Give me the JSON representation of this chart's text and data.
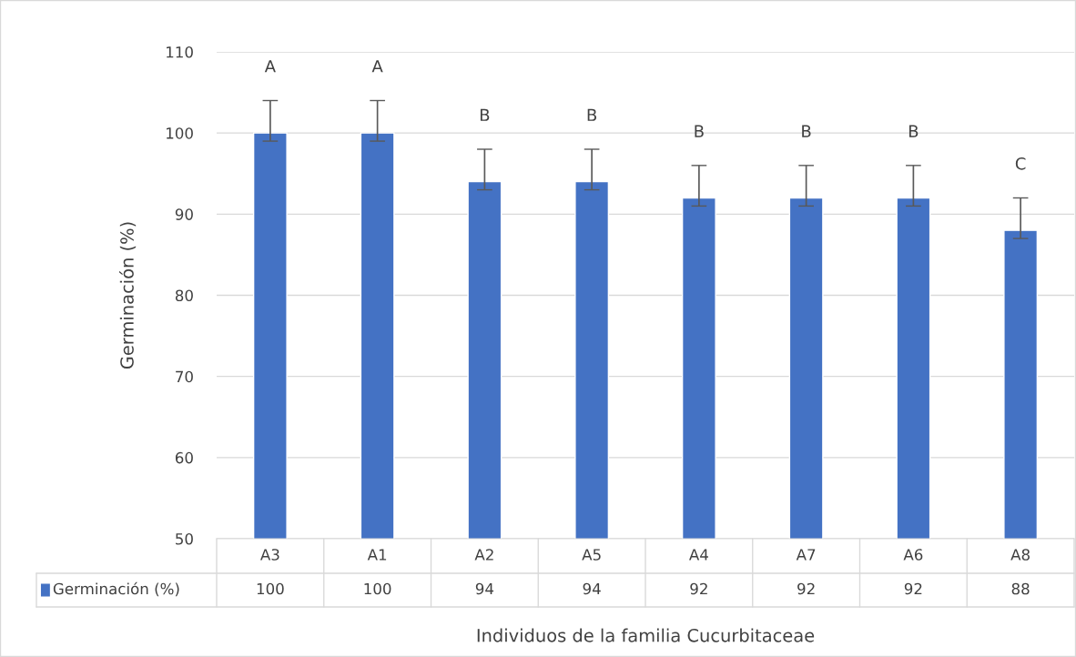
{
  "chart_data": {
    "type": "bar",
    "xlabel": "Individuos de la familia Cucurbitaceae",
    "ylabel": "Germinación (%)",
    "categories": [
      "A3",
      "A1",
      "A2",
      "A5",
      "A4",
      "A7",
      "A6",
      "A8"
    ],
    "series": [
      {
        "name": "Germinación (%)",
        "color": "#4472c4",
        "values": [
          100,
          100,
          94,
          94,
          92,
          92,
          92,
          88
        ],
        "errors": [
          [
            99,
            104
          ],
          [
            99,
            104
          ],
          [
            93,
            98
          ],
          [
            93,
            98
          ],
          [
            91,
            96
          ],
          [
            91,
            96
          ],
          [
            91,
            96
          ],
          [
            87,
            92
          ]
        ]
      }
    ],
    "data_labels": true,
    "ylim": [
      50,
      110
    ],
    "yticks": [
      50,
      60,
      70,
      80,
      90,
      100,
      110
    ],
    "grid": "y",
    "legend": "bottom",
    "annotations": [
      "A",
      "A",
      "B",
      "B",
      "B",
      "B",
      "B",
      "C"
    ]
  }
}
